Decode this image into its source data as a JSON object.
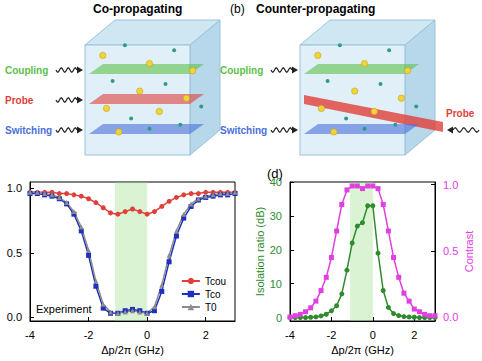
{
  "figure": {
    "diagrams": [
      {
        "title": "Co-propagating",
        "beams": [
          {
            "name": "Coupling",
            "color": "#5cc04a"
          },
          {
            "name": "Probe",
            "color": "#e0403a"
          },
          {
            "name": "Switching",
            "color": "#4a6fd8"
          }
        ],
        "probe_direction": "co"
      },
      {
        "label": "(b)",
        "title": "Counter-propagating",
        "beams": [
          {
            "name": "Coupling",
            "color": "#5cc04a"
          },
          {
            "name": "Probe",
            "color": "#e0403a"
          },
          {
            "name": "Switching",
            "color": "#4a6fd8"
          }
        ],
        "probe_direction": "counter"
      }
    ]
  },
  "chart_data": [
    {
      "type": "line",
      "x": [
        -4,
        -3.75,
        -3.5,
        -3.25,
        -3,
        -2.75,
        -2.5,
        -2.25,
        -2,
        -1.75,
        -1.5,
        -1.25,
        -1,
        -0.75,
        -0.5,
        -0.25,
        0,
        0.25,
        0.5,
        0.75,
        1,
        1.25,
        1.5,
        1.75,
        2,
        2.25,
        2.5,
        2.75,
        3
      ],
      "series": [
        {
          "name": "Tcou",
          "color": "#e0403a",
          "marker": "circle",
          "values": [
            0.97,
            0.97,
            0.97,
            0.97,
            0.96,
            0.96,
            0.95,
            0.94,
            0.92,
            0.89,
            0.85,
            0.81,
            0.8,
            0.82,
            0.84,
            0.82,
            0.8,
            0.82,
            0.86,
            0.9,
            0.93,
            0.95,
            0.96,
            0.96,
            0.97,
            0.97,
            0.97,
            0.97,
            0.97
          ]
        },
        {
          "name": "Tco",
          "color": "#1f2fbf",
          "marker": "square",
          "values": [
            0.96,
            0.96,
            0.95,
            0.94,
            0.92,
            0.88,
            0.8,
            0.67,
            0.48,
            0.24,
            0.07,
            0.03,
            0.03,
            0.05,
            0.06,
            0.05,
            0.03,
            0.05,
            0.2,
            0.43,
            0.63,
            0.77,
            0.86,
            0.91,
            0.93,
            0.94,
            0.95,
            0.95,
            0.96
          ]
        },
        {
          "name": "T0",
          "color": "#8c8c8c",
          "marker": "triangle",
          "values": [
            0.97,
            0.97,
            0.96,
            0.95,
            0.93,
            0.89,
            0.82,
            0.7,
            0.52,
            0.28,
            0.1,
            0.04,
            0.03,
            0.04,
            0.05,
            0.04,
            0.03,
            0.08,
            0.25,
            0.48,
            0.67,
            0.8,
            0.88,
            0.92,
            0.94,
            0.95,
            0.96,
            0.96,
            0.97
          ]
        }
      ],
      "xlabel": "Δp/2π (GHz)",
      "xlim": [
        -4,
        3
      ],
      "xticks": [
        -4,
        -2,
        0,
        2
      ],
      "ylim": [
        -0.03,
        1.05
      ],
      "yticks": [
        {
          "value": 0,
          "label": "0.0"
        },
        {
          "value": 0.5,
          "label": "0.5"
        },
        {
          "value": 1,
          "label": "1.0"
        }
      ],
      "grid": false,
      "legend": "lower right",
      "annotations": [
        "Experiment"
      ],
      "highlight_x": [
        -1.1,
        0
      ]
    },
    {
      "type": "line",
      "title": "(d)",
      "x": [
        -4,
        -3.75,
        -3.5,
        -3.25,
        -3,
        -2.75,
        -2.5,
        -2.25,
        -2,
        -1.75,
        -1.5,
        -1.25,
        -1,
        -0.75,
        -0.5,
        -0.25,
        0,
        0.25,
        0.5,
        0.75,
        1,
        1.25,
        1.5,
        1.75,
        2,
        2.25,
        2.5,
        2.75,
        3
      ],
      "series": [
        {
          "name": "Isolation ratio",
          "color": "#2e8b2e",
          "marker": "circle",
          "values": [
            0,
            0,
            0,
            0,
            0.1,
            0.2,
            0.5,
            1.0,
            2.0,
            3.5,
            7,
            14,
            22,
            27,
            28,
            33,
            33,
            19,
            8,
            3,
            1.2,
            0.6,
            0.3,
            0.2,
            0.1,
            0,
            0,
            0,
            0
          ]
        },
        {
          "name": "Contrast",
          "color": "#e040e0",
          "marker": "square",
          "axis": "y2",
          "values": [
            0,
            0.01,
            0.02,
            0.04,
            0.07,
            0.12,
            0.2,
            0.3,
            0.45,
            0.65,
            0.85,
            0.96,
            0.99,
            0.99,
            0.97,
            0.99,
            0.99,
            0.97,
            0.85,
            0.65,
            0.45,
            0.3,
            0.18,
            0.12,
            0.06,
            0.04,
            0.02,
            0.01,
            0.01
          ]
        }
      ],
      "xlabel": "Δp/2π (GHz)",
      "ylabel": "Isolation ratio (dB)",
      "y2label": "Contrast",
      "xlim": [
        -4,
        3
      ],
      "xticks": [
        -4,
        -2,
        0,
        2
      ],
      "ylim": [
        -1,
        40
      ],
      "yticks": [
        0,
        10,
        20,
        30,
        40
      ],
      "y2lim": [
        -0.03,
        1.02
      ],
      "y2ticks": [
        {
          "value": 0,
          "label": "0.0"
        },
        {
          "value": 0.5,
          "label": "0.5"
        },
        {
          "value": 1,
          "label": "1.0"
        }
      ],
      "grid": false,
      "highlight_x": [
        -1.1,
        0
      ]
    }
  ]
}
